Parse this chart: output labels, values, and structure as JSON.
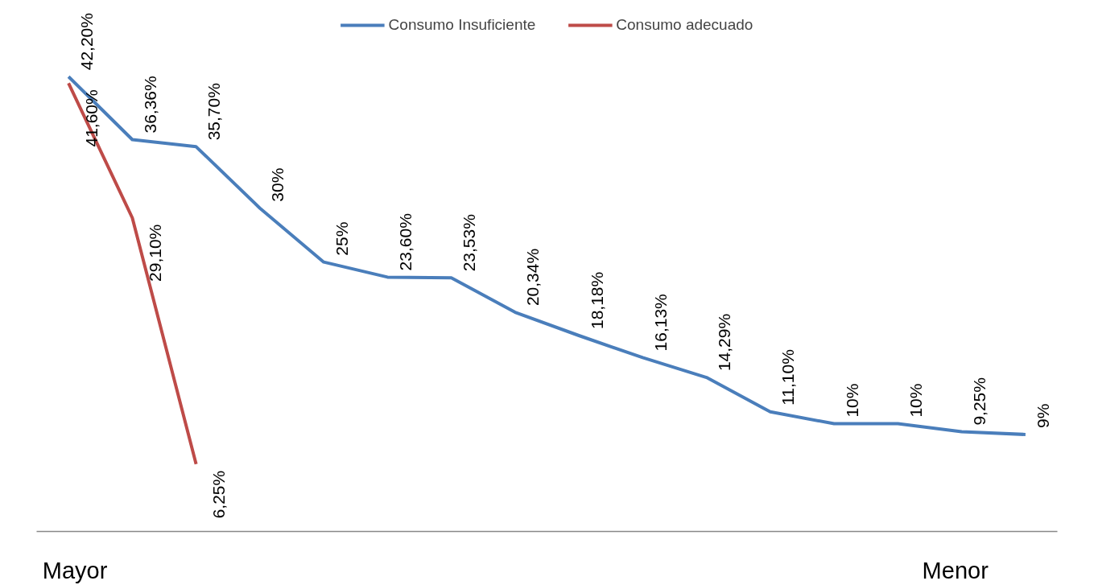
{
  "chart_data": {
    "type": "line",
    "categories": [
      null,
      null,
      null,
      null,
      null,
      null,
      null,
      null,
      null,
      null,
      null,
      null,
      null,
      null,
      null,
      null
    ],
    "series": [
      {
        "name": "Consumo Insuficiente",
        "color": "#4a7ebb",
        "values": [
          42.2,
          36.36,
          35.7,
          30,
          25,
          23.6,
          23.53,
          20.34,
          18.18,
          16.13,
          14.29,
          11.1,
          10,
          10,
          9.25,
          9
        ],
        "value_labels": [
          "42,20%",
          "36,36%",
          "35,70%",
          "30%",
          "25%",
          "23,60%",
          "23,53%",
          "20,34%",
          "18,18%",
          "16,13%",
          "14,29%",
          "11,10%",
          "10%",
          "10%",
          "9,25%",
          "9%"
        ]
      },
      {
        "name": "Consumo adecuado",
        "color": "#be4b48",
        "values": [
          41.6,
          29.1,
          6.25,
          null,
          null,
          null,
          null,
          null,
          null,
          null,
          null,
          null,
          null,
          null,
          null,
          null
        ],
        "value_labels": [
          "41,60%",
          "29,10%",
          "6,25%",
          null,
          null,
          null,
          null,
          null,
          null,
          null,
          null,
          null,
          null,
          null,
          null,
          null
        ]
      }
    ],
    "legend": "top",
    "grid": false,
    "tick_labels": false,
    "marker": "none",
    "line_style": "solid",
    "annotations": [
      "Mayor",
      "Menor"
    ]
  }
}
